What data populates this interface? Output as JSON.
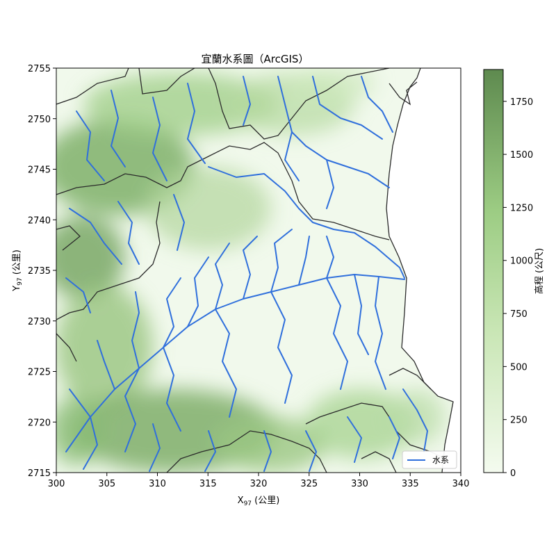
{
  "map": {
    "title": "宜蘭水系圖（ArcGIS）",
    "xlabel_main": "X",
    "xlabel_sub": "97",
    "xlabel_unit": " (公里)",
    "ylabel_main": "Y",
    "ylabel_sub": "97",
    "ylabel_unit": " (公里)",
    "xlim": [
      300,
      340
    ],
    "ylim": [
      2715,
      2755
    ],
    "xticks": [
      "300",
      "305",
      "310",
      "315",
      "320",
      "325",
      "330",
      "335",
      "340"
    ],
    "yticks": [
      "2715",
      "2720",
      "2725",
      "2730",
      "2735",
      "2740",
      "2745",
      "2750",
      "2755"
    ],
    "legend": {
      "label": "水系",
      "placement": "lower-right"
    },
    "river_color": "#2f6fdc",
    "boundary_color": "#2a2a2a"
  },
  "colorbar": {
    "label": "高程 (公尺)",
    "range": [
      0,
      1900
    ],
    "ticks": [
      "0",
      "250",
      "500",
      "750",
      "1000",
      "1250",
      "1500",
      "1750"
    ],
    "color_low": "#f4fbef",
    "color_mid": "#a6d38d",
    "color_high": "#5e8a4f"
  }
}
